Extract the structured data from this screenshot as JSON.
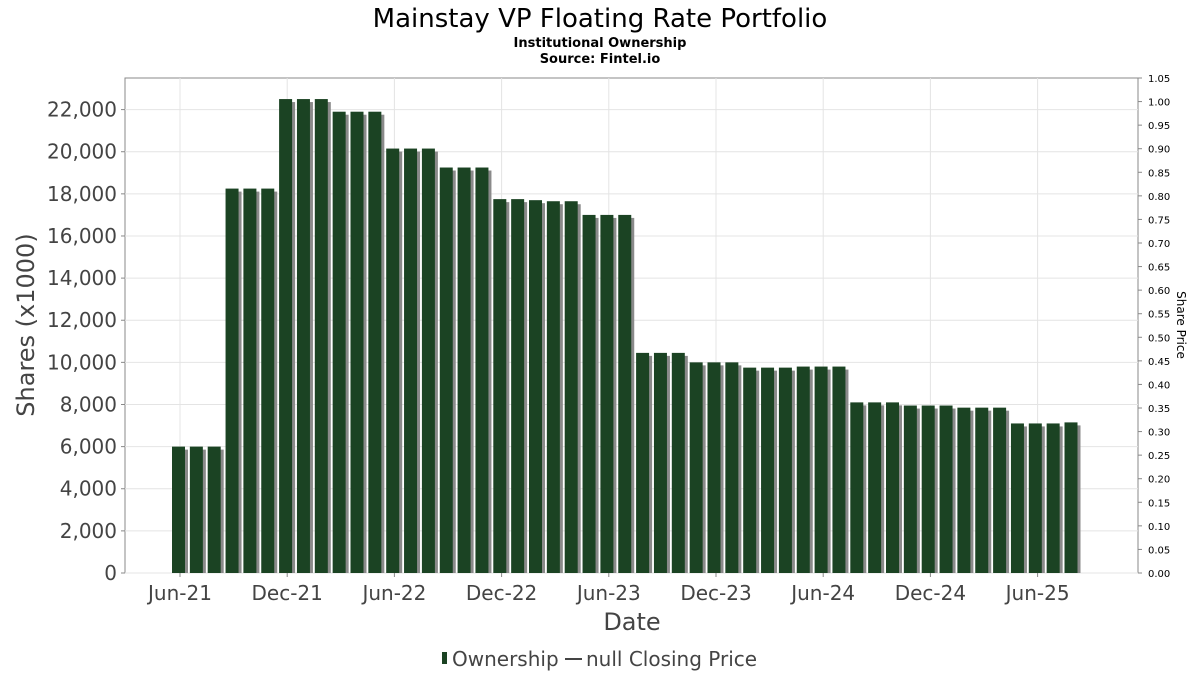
{
  "chart_data": {
    "type": "bar",
    "title": "Mainstay VP Floating Rate Portfolio",
    "subtitle_1": "Institutional Ownership",
    "subtitle_2": "Source: Fintel.io",
    "xlabel": "Date",
    "ylabel": "Shares (x1000)",
    "y2label": "Share Price",
    "ylim": [
      0,
      23500
    ],
    "y2lim": [
      0,
      1.05
    ],
    "yticks": [
      "0",
      "2,000",
      "4,000",
      "6,000",
      "8,000",
      "10,000",
      "12,000",
      "14,000",
      "16,000",
      "18,000",
      "20,000",
      "22,000"
    ],
    "y2ticks": [
      "0.00",
      "0.05",
      "0.10",
      "0.15",
      "0.20",
      "0.25",
      "0.30",
      "0.35",
      "0.40",
      "0.45",
      "0.50",
      "0.55",
      "0.60",
      "0.65",
      "0.70",
      "0.75",
      "0.80",
      "0.85",
      "0.90",
      "0.95",
      "1.00",
      "1.05"
    ],
    "xticks": [
      "Jun-21",
      "Dec-21",
      "Jun-22",
      "Dec-22",
      "Jun-23",
      "Dec-23",
      "Jun-24",
      "Dec-24",
      "Jun-25"
    ],
    "grid": true,
    "legend_position": "bottom",
    "series": [
      {
        "name": "Ownership",
        "color": "#1b4323",
        "shadow_color": "#8a8a8a",
        "values": [
          6000,
          6000,
          6000,
          18250,
          18250,
          18250,
          22500,
          22500,
          22500,
          21900,
          21900,
          21900,
          20150,
          20150,
          20150,
          19250,
          19250,
          19250,
          17750,
          17750,
          17700,
          17650,
          17650,
          17000,
          17000,
          17000,
          10450,
          10450,
          10450,
          10000,
          10000,
          10000,
          9750,
          9750,
          9750,
          9800,
          9800,
          9800,
          8100,
          8100,
          8100,
          7950,
          7950,
          7950,
          7850,
          7850,
          7850,
          7100,
          7100,
          7100,
          7150
        ]
      },
      {
        "name": "null Closing Price",
        "color": "#444444",
        "values": []
      }
    ]
  }
}
